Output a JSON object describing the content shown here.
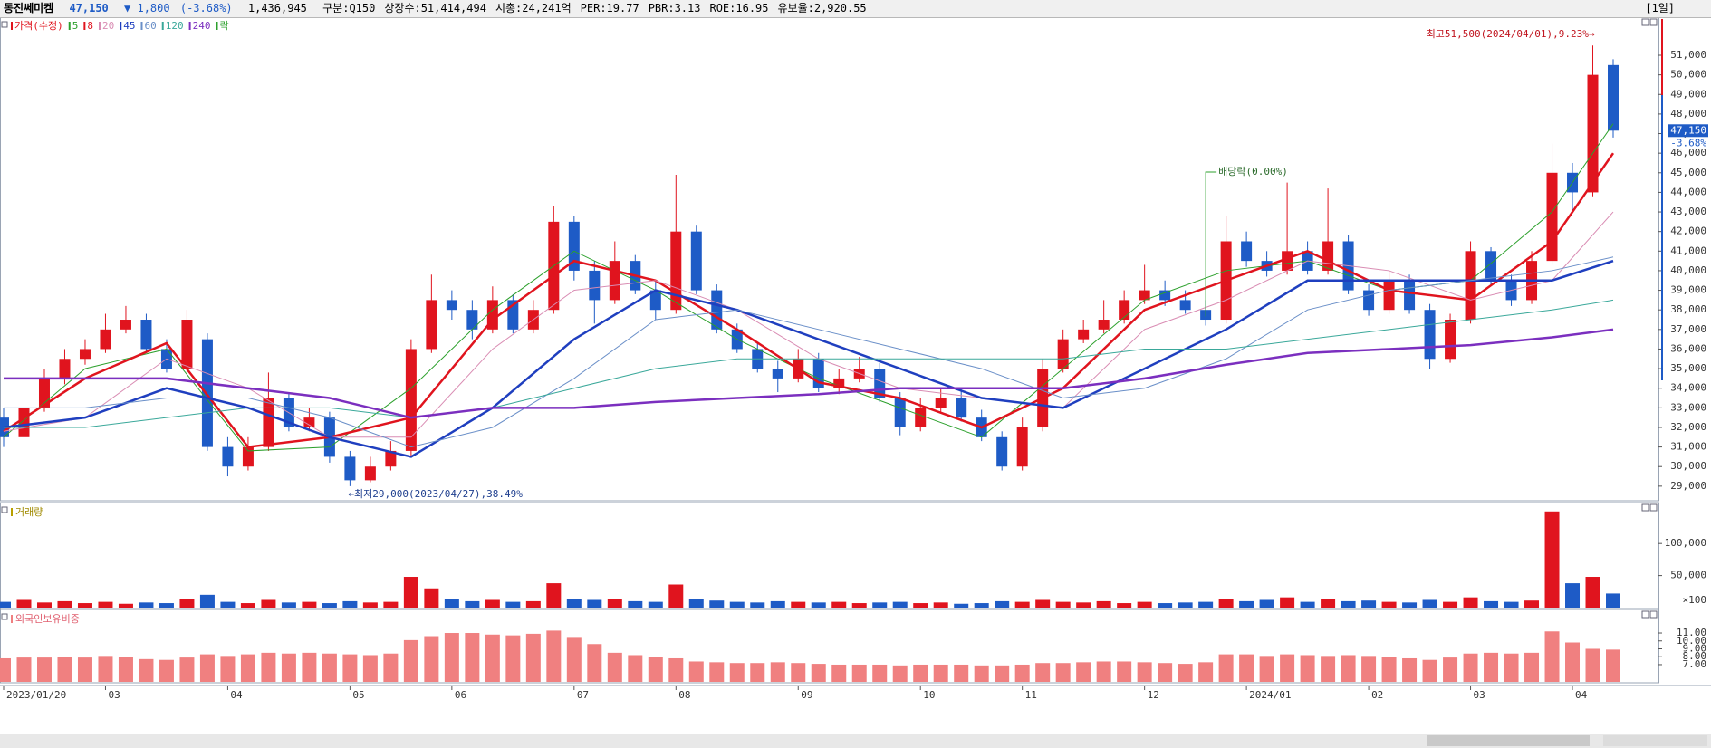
{
  "header": {
    "name": "동진쎄미켐",
    "price": "47,150",
    "change": "▼ 1,800",
    "change_pct": "(-3.68%)",
    "volume": "1,436,945",
    "info": [
      "구분:Q150",
      "상장수:51,414,494",
      "시총:24,241억",
      "PER:19.77",
      "PBR:3.13",
      "ROE:16.95",
      "유보율:2,920.55"
    ],
    "period": "[1일]"
  },
  "chart_data": [
    {
      "type": "candlestick",
      "legend_label": "가격(수정)",
      "ex_label": "락",
      "up_color": "#e0141e",
      "down_color": "#1e5bc6",
      "open": [
        32500,
        31500,
        33000,
        34500,
        35500,
        36000,
        37000,
        37500,
        36000,
        35000,
        36500,
        31000,
        30000,
        31000,
        33500,
        32000,
        32500,
        30500,
        29300,
        30000,
        30800,
        36000,
        38500,
        38000,
        37000,
        38500,
        37000,
        38000,
        42500,
        40000,
        38500,
        40500,
        39000,
        38000,
        42000,
        39000,
        37000,
        36000,
        35000,
        34500,
        35500,
        34000,
        34500,
        35000,
        33500,
        32000,
        33000,
        33500,
        32500,
        31500,
        30000,
        32000,
        35000,
        36500,
        37000,
        37500,
        38500,
        39000,
        38500,
        38000,
        37500,
        41500,
        40500,
        40000,
        41000,
        40000,
        41500,
        39000,
        38000,
        39500,
        38000,
        35500,
        37500,
        41000,
        39500,
        38500,
        40500,
        45000,
        44000,
        50500
      ],
      "high": [
        33000,
        33500,
        35000,
        36000,
        36500,
        37800,
        38200,
        37800,
        36500,
        38000,
        36800,
        31500,
        31500,
        34800,
        33800,
        33000,
        32800,
        30800,
        30500,
        31300,
        36500,
        39800,
        39000,
        38500,
        39200,
        38800,
        38500,
        43300,
        42800,
        40500,
        41500,
        40800,
        39500,
        44900,
        42300,
        39300,
        37300,
        36300,
        35400,
        36000,
        35800,
        35000,
        35600,
        35300,
        33800,
        33500,
        34000,
        34000,
        32900,
        31800,
        32500,
        35500,
        37000,
        37500,
        38500,
        39000,
        40300,
        39500,
        39000,
        38500,
        42800,
        42000,
        41000,
        44500,
        41500,
        44200,
        41800,
        39300,
        40000,
        39800,
        38300,
        37800,
        41500,
        41200,
        39800,
        41000,
        46500,
        45500,
        51500,
        50800
      ],
      "low": [
        31000,
        31200,
        32800,
        34200,
        35200,
        35800,
        36800,
        35800,
        34800,
        34800,
        30800,
        29500,
        29800,
        30800,
        31800,
        31800,
        30200,
        29000,
        29200,
        29800,
        30500,
        35800,
        37500,
        36500,
        36800,
        36800,
        36800,
        37800,
        39500,
        37300,
        38300,
        38800,
        37500,
        37800,
        38800,
        36800,
        35800,
        34800,
        33800,
        34300,
        33800,
        33700,
        34300,
        33300,
        31600,
        31800,
        32800,
        32300,
        31300,
        29800,
        29800,
        31800,
        34800,
        36300,
        36800,
        37300,
        38300,
        38200,
        37800,
        37200,
        37300,
        40200,
        39700,
        39800,
        39800,
        39800,
        38800,
        37700,
        37800,
        37800,
        35000,
        35300,
        37300,
        39300,
        38200,
        38300,
        40300,
        43000,
        43800,
        46800
      ],
      "close": [
        31500,
        33000,
        34500,
        35500,
        36000,
        37000,
        37500,
        36000,
        35000,
        37500,
        31000,
        30000,
        31000,
        33500,
        32000,
        32500,
        30500,
        29300,
        30000,
        30800,
        36000,
        38500,
        38000,
        37000,
        38500,
        37000,
        38000,
        42500,
        40000,
        38500,
        40500,
        39000,
        38000,
        42000,
        39000,
        37000,
        36000,
        35000,
        34500,
        35500,
        34000,
        34500,
        35000,
        33500,
        32000,
        33000,
        33500,
        32500,
        31500,
        30000,
        32000,
        35000,
        36500,
        37000,
        37500,
        38500,
        39000,
        38500,
        38000,
        37500,
        41500,
        40500,
        40000,
        41000,
        40000,
        41500,
        39000,
        38000,
        39500,
        38000,
        35500,
        37500,
        41000,
        39500,
        38500,
        40500,
        45000,
        44000,
        50000,
        47150
      ],
      "ma_index": [
        0,
        4,
        8,
        12,
        16,
        20,
        24,
        28,
        32,
        36,
        40,
        44,
        48,
        52,
        56,
        60,
        64,
        68,
        72,
        76,
        79
      ],
      "series": [
        {
          "name": "5",
          "color": "#2ca02c",
          "width": 1,
          "values": [
            31500,
            35000,
            36000,
            30800,
            31000,
            34000,
            38000,
            41000,
            39000,
            36500,
            34500,
            33000,
            31500,
            35000,
            38500,
            40000,
            40500,
            39000,
            39500,
            43000,
            47500
          ]
        },
        {
          "name": "8",
          "color": "#e0141e",
          "width": 2.5,
          "values": [
            31800,
            34500,
            36300,
            31000,
            31500,
            32500,
            37500,
            40500,
            39500,
            37000,
            34300,
            33500,
            32000,
            34000,
            38000,
            39500,
            41000,
            39000,
            38500,
            41500,
            46000
          ]
        },
        {
          "name": "20",
          "color": "#d98cb3",
          "width": 1,
          "values": [
            31800,
            32500,
            35500,
            34000,
            31500,
            31500,
            36000,
            39000,
            39500,
            38000,
            35500,
            34000,
            33500,
            33000,
            37000,
            38500,
            40500,
            40000,
            38500,
            39500,
            43000
          ]
        },
        {
          "name": "45",
          "color": "#1f3fbf",
          "width": 2.5,
          "values": [
            32000,
            32500,
            34000,
            33000,
            31500,
            30500,
            33000,
            36500,
            39000,
            38000,
            36500,
            35000,
            33500,
            33000,
            35000,
            37000,
            39500,
            39500,
            39500,
            39500,
            40500
          ]
        },
        {
          "name": "60",
          "color": "#6a8fc8",
          "width": 1,
          "values": [
            33000,
            33000,
            33500,
            33500,
            32500,
            31000,
            32000,
            34500,
            37500,
            38000,
            37000,
            36000,
            35000,
            33500,
            34000,
            35500,
            38000,
            39000,
            39500,
            40000,
            40700
          ]
        },
        {
          "name": "120",
          "color": "#3aa89a",
          "width": 1,
          "values": [
            32000,
            32000,
            32500,
            33000,
            33000,
            32500,
            33000,
            34000,
            35000,
            35500,
            35500,
            35500,
            35500,
            35500,
            36000,
            36000,
            36500,
            37000,
            37500,
            38000,
            38500
          ]
        },
        {
          "name": "240",
          "color": "#7b2fbf",
          "width": 2.5,
          "values": [
            34500,
            34500,
            34500,
            34000,
            33500,
            32500,
            33000,
            33000,
            33300,
            33500,
            33700,
            34000,
            34000,
            34000,
            34500,
            35200,
            35800,
            36000,
            36200,
            36600,
            37000
          ]
        }
      ],
      "ylim": [
        28300,
        52850
      ],
      "yticks": [
        {
          "value": 29000,
          "label": "29,000"
        },
        {
          "value": 30000,
          "label": "30,000"
        },
        {
          "value": 31000,
          "label": "31,000"
        },
        {
          "value": 32000,
          "label": "32,000"
        },
        {
          "value": 33000,
          "label": "33,000"
        },
        {
          "value": 34000,
          "label": "34,000"
        },
        {
          "value": 35000,
          "label": "35,000"
        },
        {
          "value": 36000,
          "label": "36,000"
        },
        {
          "value": 37000,
          "label": "37,000"
        },
        {
          "value": 38000,
          "label": "38,000"
        },
        {
          "value": 39000,
          "label": "39,000"
        },
        {
          "value": 40000,
          "label": "40,000"
        },
        {
          "value": 41000,
          "label": "41,000"
        },
        {
          "value": 42000,
          "label": "42,000"
        },
        {
          "value": 43000,
          "label": "43,000"
        },
        {
          "value": 44000,
          "label": "44,000"
        },
        {
          "value": 45000,
          "label": "45,000"
        },
        {
          "value": 46000,
          "label": "46,000"
        },
        {
          "value": 47000,
          "label": "47,000"
        },
        {
          "value": 48000,
          "label": "48,000"
        },
        {
          "value": 49000,
          "label": "49,000"
        },
        {
          "value": 50000,
          "label": "50,000"
        },
        {
          "value": 51000,
          "label": "51,000"
        }
      ],
      "annotations": [
        "최고51,500(2024/04/01),9.23%→",
        "←최저29,000(2023/04/27),38.49%",
        "배당락(0.00%)"
      ],
      "last_label": "47,150",
      "last_change": "-3.68%"
    },
    {
      "type": "bar",
      "title": "거래량",
      "unit_label": "×100",
      "values": [
        9000,
        12000,
        8000,
        10000,
        7000,
        9000,
        6000,
        8000,
        7000,
        14000,
        20000,
        9000,
        7000,
        12000,
        8000,
        9000,
        7000,
        10000,
        8000,
        9000,
        48000,
        30000,
        14000,
        10000,
        12000,
        9000,
        10000,
        38000,
        14000,
        12000,
        13000,
        10000,
        9000,
        36000,
        14000,
        11000,
        9000,
        8000,
        10000,
        9000,
        8000,
        9000,
        7000,
        8000,
        9000,
        7000,
        8000,
        6000,
        7000,
        10000,
        9000,
        12000,
        9000,
        8000,
        10000,
        7000,
        9000,
        7000,
        8000,
        9000,
        14000,
        10000,
        12000,
        16000,
        9000,
        13000,
        10000,
        11000,
        9000,
        8000,
        12000,
        9000,
        16000,
        10000,
        9000,
        11000,
        150000,
        38000,
        48000,
        22000
      ],
      "ylim": [
        0,
        161000
      ],
      "yticks": [
        {
          "value": 100000,
          "label": "100,000"
        },
        {
          "value": 50000,
          "label": "50,000"
        }
      ]
    },
    {
      "type": "bar",
      "title": "외국인보유비중",
      "color": "#f08080",
      "values": [
        7.8,
        7.9,
        7.9,
        8.0,
        7.9,
        8.1,
        8.0,
        7.7,
        7.6,
        7.9,
        8.3,
        8.1,
        8.3,
        8.5,
        8.4,
        8.5,
        8.4,
        8.3,
        8.2,
        8.4,
        10.1,
        10.6,
        11.0,
        11.0,
        10.8,
        10.7,
        10.9,
        11.3,
        10.5,
        9.6,
        8.5,
        8.2,
        8.0,
        7.8,
        7.4,
        7.3,
        7.2,
        7.2,
        7.3,
        7.2,
        7.1,
        7.0,
        7.0,
        7.0,
        6.9,
        7.0,
        7.0,
        7.0,
        6.9,
        6.9,
        7.0,
        7.2,
        7.2,
        7.3,
        7.4,
        7.4,
        7.3,
        7.2,
        7.1,
        7.3,
        8.3,
        8.3,
        8.1,
        8.3,
        8.2,
        8.1,
        8.2,
        8.1,
        8.0,
        7.8,
        7.6,
        7.9,
        8.4,
        8.5,
        8.4,
        8.5,
        11.2,
        9.8,
        9.0,
        8.9
      ],
      "ylim": [
        4.82,
        13.75
      ],
      "yticks": [
        {
          "value": 11,
          "label": "11.00"
        },
        {
          "value": 10,
          "label": "10.00"
        },
        {
          "value": 9,
          "label": "9.00"
        },
        {
          "value": 8,
          "label": "8.00"
        },
        {
          "value": 7,
          "label": "7.00"
        }
      ],
      "x_labels": [
        {
          "index": 0,
          "label": "2023/01/20"
        },
        {
          "index": 5,
          "label": "03"
        },
        {
          "index": 11,
          "label": "04"
        },
        {
          "index": 17,
          "label": "05"
        },
        {
          "index": 22,
          "label": "06"
        },
        {
          "index": 28,
          "label": "07"
        },
        {
          "index": 33,
          "label": "08"
        },
        {
          "index": 39,
          "label": "09"
        },
        {
          "index": 45,
          "label": "10"
        },
        {
          "index": 50,
          "label": "11"
        },
        {
          "index": 56,
          "label": "12"
        },
        {
          "index": 61,
          "label": "2024/01"
        },
        {
          "index": 67,
          "label": "02"
        },
        {
          "index": 72,
          "label": "03"
        },
        {
          "index": 77,
          "label": "04"
        }
      ]
    }
  ]
}
